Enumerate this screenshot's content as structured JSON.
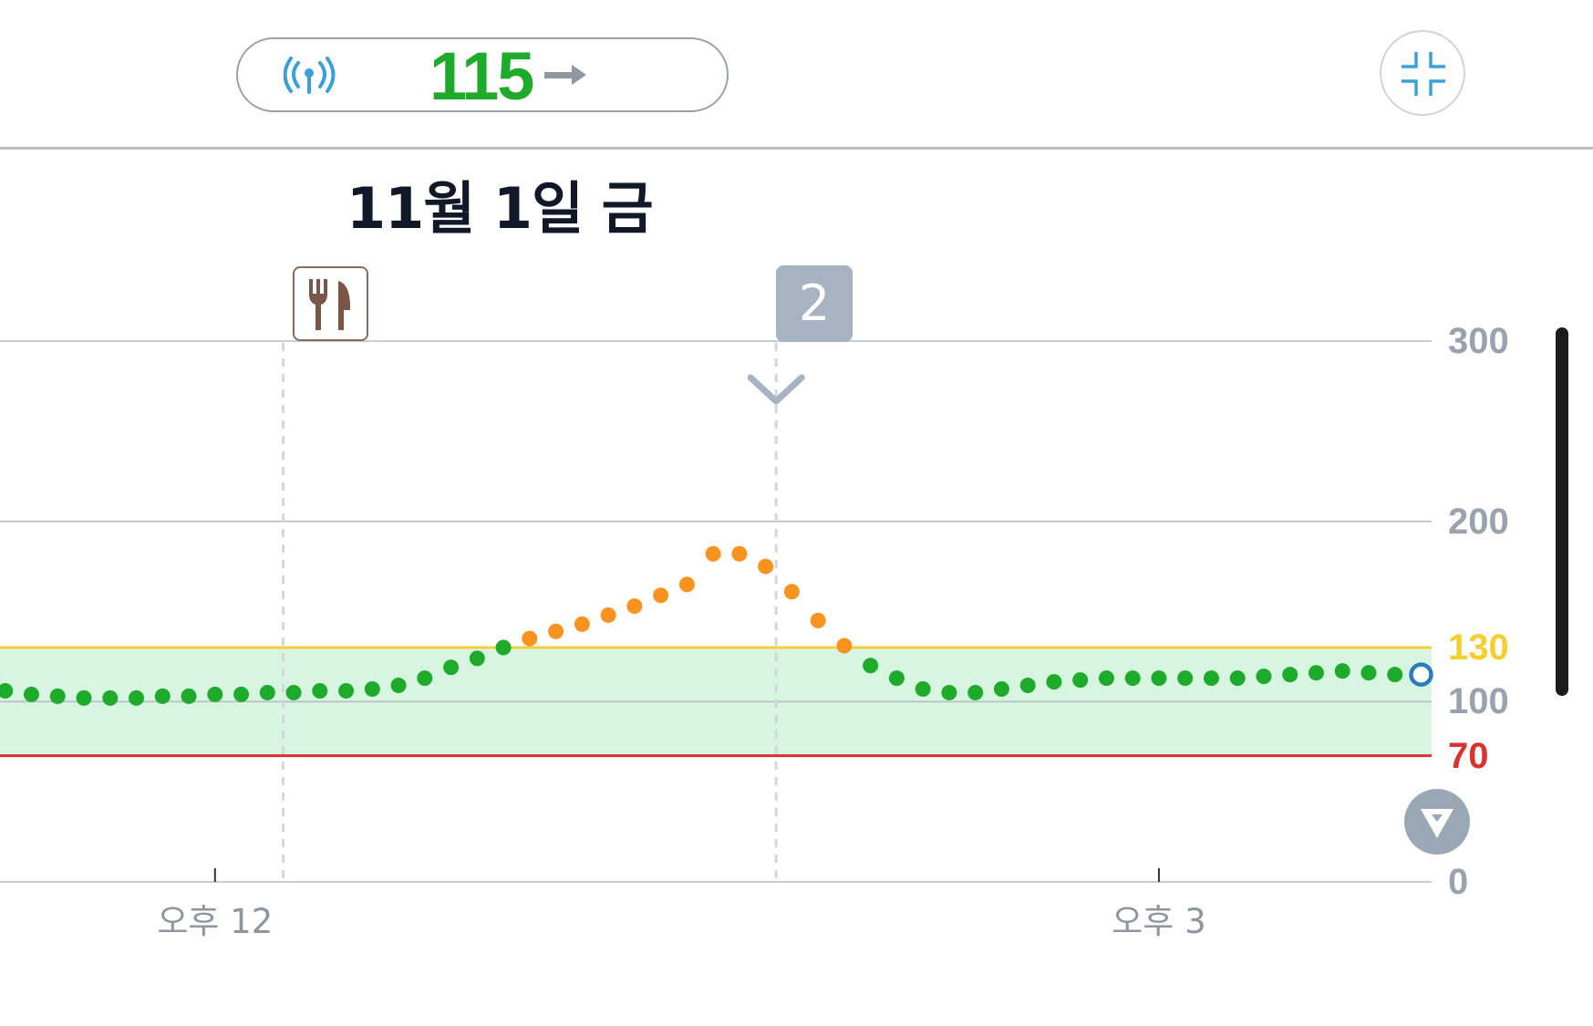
{
  "header": {
    "glucose_value": "115",
    "trend": "steady",
    "signal_icon": "sensor-signal-icon",
    "trend_icon": "arrow-right-icon",
    "collapse_icon": "collapse-icon"
  },
  "date_title": "11월 1일 금",
  "events": {
    "meal_icon": "fork-knife-icon",
    "group_count": "2",
    "expand_icon": "chevron-down-icon"
  },
  "scroll_down_icon": "arrow-down-icon",
  "colors": {
    "in_range": "#1eaa2b",
    "high": "#f7931e",
    "high_threshold": "#f4d03f",
    "low_threshold": "#d8332c",
    "target_band": "#d8f5e2",
    "current_marker": "#2b7bbf"
  },
  "chart_data": {
    "type": "scatter",
    "title": "",
    "xlabel": "",
    "ylabel": "",
    "ylim": [
      0,
      300
    ],
    "y_ticks": [
      {
        "value": 300,
        "label": "300",
        "color": "#9aa3ad"
      },
      {
        "value": 200,
        "label": "200",
        "color": "#9aa3ad"
      },
      {
        "value": 130,
        "label": "130",
        "color": "#f4cf2e"
      },
      {
        "value": 100,
        "label": "100",
        "color": "#9aa3ad"
      },
      {
        "value": 70,
        "label": "70",
        "color": "#d8332c"
      },
      {
        "value": 0,
        "label": "0",
        "color": "#9aa3ad"
      }
    ],
    "target_range": [
      70,
      130
    ],
    "x_ticks": [
      {
        "time": "12:00",
        "label": "오후 12"
      },
      {
        "time": "15:00",
        "label": "오후 3"
      }
    ],
    "xlim": [
      "11:19",
      "15:52"
    ],
    "event_times": [
      "12:13",
      "13:47"
    ],
    "series": [
      {
        "points": [
          [
            "11:20",
            106
          ],
          [
            "11:25",
            104
          ],
          [
            "11:30",
            103
          ],
          [
            "11:35",
            102
          ],
          [
            "11:40",
            102
          ],
          [
            "11:45",
            102
          ],
          [
            "11:50",
            103
          ],
          [
            "11:55",
            103
          ],
          [
            "12:00",
            104
          ],
          [
            "12:05",
            104
          ],
          [
            "12:10",
            105
          ],
          [
            "12:15",
            105
          ],
          [
            "12:20",
            106
          ],
          [
            "12:25",
            106
          ],
          [
            "12:30",
            107
          ],
          [
            "12:35",
            109
          ],
          [
            "12:40",
            113
          ],
          [
            "12:45",
            119
          ],
          [
            "12:50",
            124
          ],
          [
            "12:55",
            130
          ],
          [
            "13:00",
            135
          ],
          [
            "13:05",
            139
          ],
          [
            "13:10",
            143
          ],
          [
            "13:15",
            148
          ],
          [
            "13:20",
            153
          ],
          [
            "13:25",
            159
          ],
          [
            "13:30",
            165
          ],
          [
            "13:35",
            182
          ],
          [
            "13:40",
            182
          ],
          [
            "13:45",
            175
          ],
          [
            "13:50",
            161
          ],
          [
            "13:55",
            145
          ],
          [
            "14:00",
            131
          ],
          [
            "14:05",
            120
          ],
          [
            "14:10",
            113
          ],
          [
            "14:15",
            107
          ],
          [
            "14:20",
            105
          ],
          [
            "14:25",
            105
          ],
          [
            "14:30",
            107
          ],
          [
            "14:35",
            109
          ],
          [
            "14:40",
            111
          ],
          [
            "14:45",
            112
          ],
          [
            "14:50",
            113
          ],
          [
            "14:55",
            113
          ],
          [
            "15:00",
            113
          ],
          [
            "15:05",
            113
          ],
          [
            "15:10",
            113
          ],
          [
            "15:15",
            113
          ],
          [
            "15:20",
            114
          ],
          [
            "15:25",
            115
          ],
          [
            "15:30",
            116
          ],
          [
            "15:35",
            117
          ],
          [
            "15:40",
            116
          ],
          [
            "15:45",
            115
          ]
        ]
      }
    ],
    "current": {
      "time": "15:50",
      "value": 115
    }
  }
}
